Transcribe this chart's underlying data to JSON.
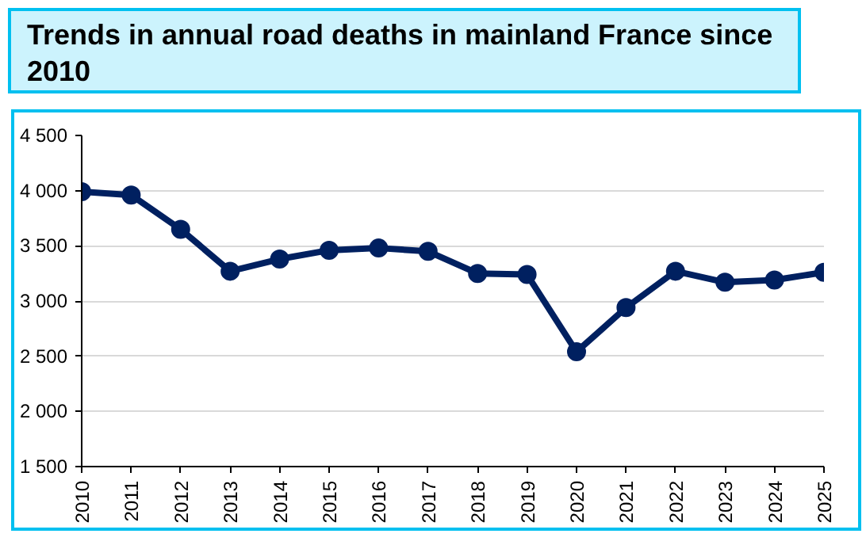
{
  "chart_data": {
    "type": "line",
    "title": "Trends in annual road deaths in mainland France since 2010",
    "categories": [
      "2010",
      "2011",
      "2012",
      "2013",
      "2014",
      "2015",
      "2016",
      "2017",
      "2018",
      "2019",
      "2020",
      "2021",
      "2022",
      "2023",
      "2024",
      "2025"
    ],
    "series": [
      {
        "color": "#002060",
        "values": [
          3990,
          3960,
          3650,
          3270,
          3380,
          3460,
          3480,
          3450,
          3250,
          3240,
          2540,
          2940,
          3270,
          3170,
          3190,
          3260
        ]
      }
    ],
    "ylim": [
      1500,
      4500
    ],
    "yticks": [
      {
        "value": 1500,
        "label": "1 500"
      },
      {
        "value": 2000,
        "label": "2 000"
      },
      {
        "value": 2500,
        "label": "2 500"
      },
      {
        "value": 3000,
        "label": "3 000"
      },
      {
        "value": 3500,
        "label": "3 500"
      },
      {
        "value": 4000,
        "label": "4 000"
      },
      {
        "value": 4500,
        "label": "4 500"
      }
    ],
    "grid": "y",
    "marker": "circle",
    "line_style": "solid"
  }
}
